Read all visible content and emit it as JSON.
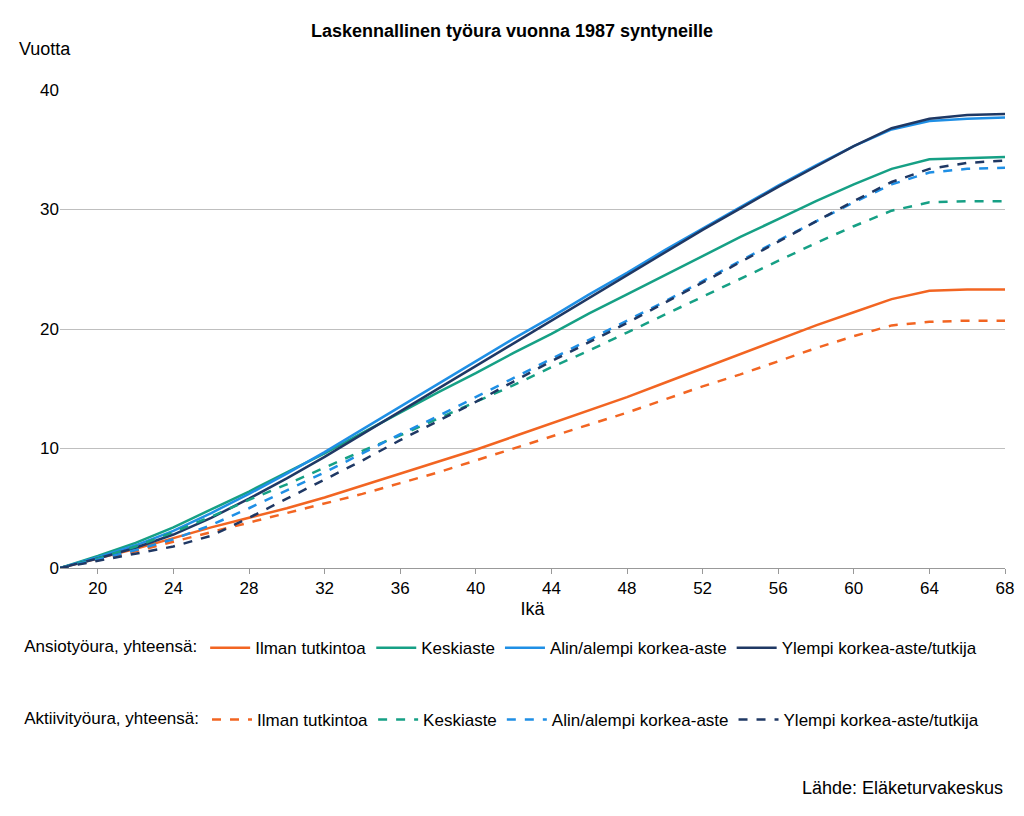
{
  "chart_data": {
    "type": "line",
    "title": "Laskennallinen työura vuonna 1987 syntyneille",
    "y_label": "Vuotta",
    "x_label": "Ikä",
    "source": "Lähde: Eläketurvakeskus",
    "x": [
      18,
      20,
      22,
      24,
      26,
      28,
      30,
      32,
      34,
      36,
      38,
      40,
      42,
      44,
      46,
      48,
      50,
      52,
      54,
      56,
      58,
      60,
      62,
      64,
      66,
      68
    ],
    "xlim": [
      18,
      68
    ],
    "xticks": [
      20,
      24,
      28,
      32,
      36,
      40,
      44,
      48,
      52,
      56,
      60,
      64,
      68
    ],
    "ylim": [
      0,
      40
    ],
    "yticks": [
      0,
      10,
      20,
      30,
      40
    ],
    "grid": true,
    "legend": "bottom",
    "series": [
      {
        "name": "Ilman tutkintoa",
        "group": "Ansiotyöura, yhteensä:",
        "color": "#f26522",
        "line_style": "solid",
        "values": [
          0,
          0.8,
          1.6,
          2.5,
          3.4,
          4.2,
          5.0,
          5.9,
          6.9,
          7.9,
          8.9,
          9.9,
          11.0,
          12.1,
          13.2,
          14.3,
          15.5,
          16.7,
          17.9,
          19.1,
          20.3,
          21.4,
          22.5,
          23.2,
          23.3,
          23.3
        ]
      },
      {
        "name": "Keskiaste",
        "group": "Ansiotyöura, yhteensä:",
        "color": "#16a085",
        "line_style": "solid",
        "values": [
          0,
          1.0,
          2.1,
          3.4,
          4.9,
          6.4,
          8.0,
          9.6,
          11.3,
          13.0,
          14.7,
          16.3,
          18.0,
          19.6,
          21.3,
          22.9,
          24.5,
          26.1,
          27.7,
          29.2,
          30.7,
          32.1,
          33.4,
          34.2,
          34.3,
          34.4
        ]
      },
      {
        "name": "Alin/alempi korkea-aste",
        "group": "Ansiotyöura, yhteensä:",
        "color": "#1f8fe5",
        "line_style": "solid",
        "values": [
          0,
          0.9,
          1.9,
          3.1,
          4.6,
          6.2,
          7.9,
          9.7,
          11.6,
          13.5,
          15.4,
          17.3,
          19.2,
          21.0,
          22.9,
          24.7,
          26.6,
          28.4,
          30.2,
          32.0,
          33.7,
          35.3,
          36.7,
          37.4,
          37.6,
          37.7
        ]
      },
      {
        "name": "Ylempi korkea-aste/tutkija",
        "group": "Ansiotyöura, yhteensä:",
        "color": "#1f3864",
        "line_style": "solid",
        "values": [
          0,
          0.8,
          1.7,
          2.8,
          4.2,
          5.8,
          7.5,
          9.3,
          11.2,
          13.1,
          15.0,
          16.9,
          18.8,
          20.7,
          22.6,
          24.5,
          26.4,
          28.3,
          30.1,
          31.9,
          33.6,
          35.3,
          36.8,
          37.6,
          37.9,
          38.0
        ]
      },
      {
        "name": "Ilman tutkintoa",
        "group": "Aktiivityöura, yhteensä:",
        "color": "#f26522",
        "line_style": "dash",
        "values": [
          0,
          0.7,
          1.4,
          2.2,
          3.0,
          3.8,
          4.6,
          5.4,
          6.2,
          7.1,
          8.0,
          9.0,
          10.0,
          11.0,
          12.0,
          13.0,
          14.1,
          15.2,
          16.2,
          17.3,
          18.4,
          19.4,
          20.3,
          20.6,
          20.7,
          20.7
        ]
      },
      {
        "name": "Keskiaste",
        "group": "Aktiivityöura, yhteensä:",
        "color": "#16a085",
        "line_style": "dash",
        "values": [
          0,
          0.8,
          1.8,
          3.0,
          4.3,
          5.7,
          7.0,
          8.4,
          9.8,
          11.1,
          12.5,
          13.9,
          15.3,
          16.8,
          18.2,
          19.7,
          21.2,
          22.7,
          24.2,
          25.7,
          27.2,
          28.6,
          29.9,
          30.6,
          30.7,
          30.7
        ]
      },
      {
        "name": "Alin/alempi korkea-aste",
        "group": "Aktiivityöura, yhteensä:",
        "color": "#1f8fe5",
        "line_style": "dash",
        "values": [
          0,
          0.7,
          1.5,
          2.4,
          3.6,
          5.0,
          6.5,
          8.0,
          9.6,
          11.2,
          12.7,
          14.3,
          15.9,
          17.5,
          19.1,
          20.7,
          22.3,
          24.0,
          25.7,
          27.4,
          29.0,
          30.6,
          32.1,
          33.1,
          33.4,
          33.5
        ]
      },
      {
        "name": "Ylempi korkea-aste/tutkija",
        "group": "Aktiivityöura, yhteensä:",
        "color": "#1f3864",
        "line_style": "dash",
        "values": [
          0,
          0.6,
          1.2,
          1.8,
          2.7,
          4.2,
          5.8,
          7.4,
          9.0,
          10.7,
          12.3,
          13.9,
          15.6,
          17.3,
          18.9,
          20.5,
          22.2,
          23.9,
          25.6,
          27.3,
          29.0,
          30.7,
          32.3,
          33.4,
          33.9,
          34.1
        ]
      }
    ]
  }
}
